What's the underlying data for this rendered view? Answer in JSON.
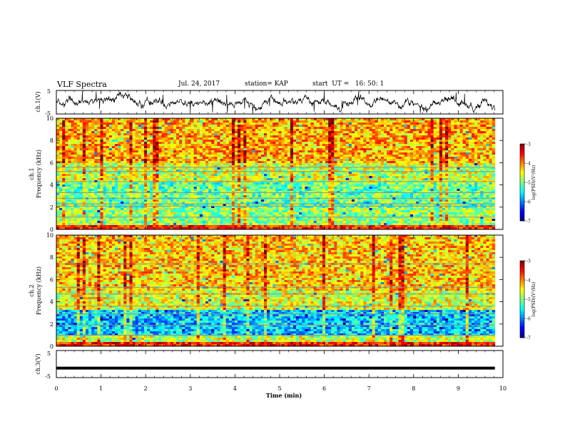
{
  "header": {
    "title": "VLF Spectra",
    "date": "Jul. 24, 2017",
    "station": "station= KAP",
    "start": "start  UT =   16: 50: 1"
  },
  "chart_data": [
    {
      "type": "line",
      "panel": "ch1-waveform",
      "ylabel": "ch.1(V)",
      "ylim": [
        -5,
        5
      ],
      "yticks": [
        "5",
        "-5"
      ],
      "xlim": [
        0,
        10
      ],
      "note_values": "signal fluctuates roughly between -4 and 4 V over 0–9.8 min"
    },
    {
      "type": "heatmap",
      "panel": "ch1-spectrogram",
      "ylabel_line1": "ch.1",
      "ylabel_line2": "Frequency (kHz)",
      "ylim": [
        0,
        10
      ],
      "yticks": [
        "0",
        "2",
        "4",
        "6",
        "8",
        "10"
      ],
      "xlim": [
        0,
        10
      ],
      "data_end_min": 9.82,
      "colorbar": {
        "label": "log(PSD)(V²/Hz)",
        "range": [
          -7,
          -3
        ],
        "ticks": [
          "-3",
          "-4",
          "-5",
          "-6",
          "-7"
        ]
      }
    },
    {
      "type": "heatmap",
      "panel": "ch2-spectrogram",
      "ylabel_line1": "ch.2",
      "ylabel_line2": "Frequency (kHz)",
      "ylim": [
        0,
        10
      ],
      "yticks": [
        "0",
        "2",
        "4",
        "6",
        "8",
        "10"
      ],
      "xlim": [
        0,
        10
      ],
      "data_end_min": 9.82,
      "colorbar": {
        "label": "log(PSD)(V²/Hz)",
        "range": [
          -7,
          -3
        ],
        "ticks": [
          "-3",
          "-4",
          "-5",
          "-6",
          "-7"
        ]
      }
    },
    {
      "type": "line",
      "panel": "ch3-waveform",
      "ylabel": "ch.3(V)",
      "ylim": [
        -5,
        5
      ],
      "yticks": [
        "5",
        "-5"
      ],
      "xlim": [
        0,
        10
      ],
      "xlabel": "Time (min)",
      "xticks": [
        "0",
        "1",
        "2",
        "3",
        "4",
        "5",
        "6",
        "7",
        "8",
        "9",
        "10"
      ],
      "constant_value": -1.5
    }
  ]
}
